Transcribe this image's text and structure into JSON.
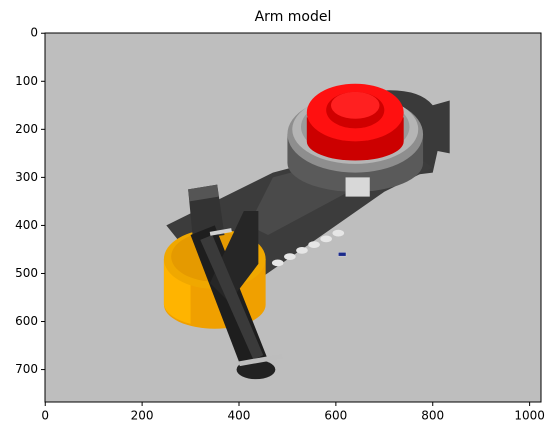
{
  "chart_data": {
    "type": "image",
    "title": "Arm model",
    "xlim": [
      -0.5,
      1023.5
    ],
    "ylim": [
      767.5,
      -0.5
    ],
    "xticks": [
      0,
      200,
      400,
      600,
      800,
      1000
    ],
    "yticks": [
      0,
      100,
      200,
      300,
      400,
      500,
      600,
      700
    ]
  }
}
